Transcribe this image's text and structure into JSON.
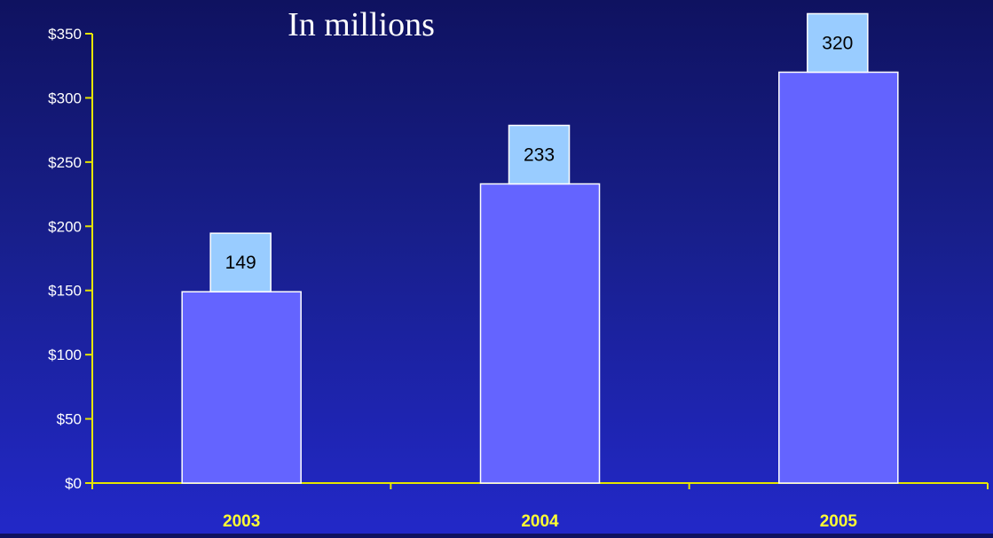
{
  "chart_data": {
    "type": "bar",
    "subtitle": "In millions",
    "categories": [
      "2003",
      "2004",
      "2005"
    ],
    "values": [
      149,
      233,
      320
    ],
    "data_labels": [
      "149",
      "233",
      "320"
    ],
    "ylim": [
      0,
      350
    ],
    "yticks": [
      0,
      50,
      100,
      150,
      200,
      250,
      300,
      350
    ],
    "ytick_labels": [
      "$0",
      "$50",
      "$100",
      "$150",
      "$200",
      "$250",
      "$300",
      "$350"
    ],
    "grid": false,
    "legend": "none",
    "colors": {
      "bar_fill": "#6464ff",
      "bar_stroke": "#ffffff",
      "label_box_fill": "#99ccff",
      "axis": "#e6e600",
      "xtick_text": "#ffff33",
      "ytick_text": "#ffffff",
      "background_top": "#0f1260",
      "background_bottom": "#2228c8"
    }
  }
}
